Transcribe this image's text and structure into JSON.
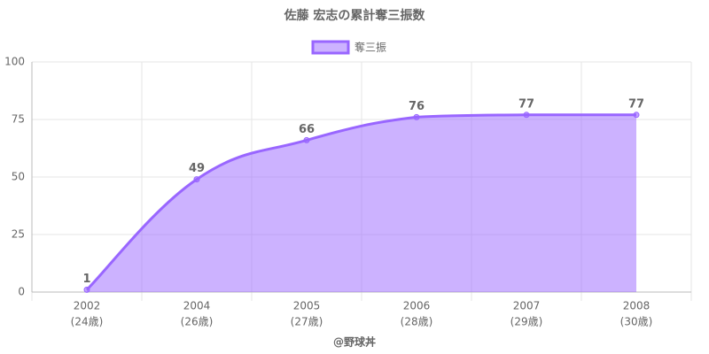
{
  "chart_data": {
    "type": "area",
    "title": "佐藤 宏志の累計奪三振数",
    "categories": [
      "2002",
      "2004",
      "2005",
      "2006",
      "2007",
      "2008"
    ],
    "category_sublabels": [
      "(24歳)",
      "(26歳)",
      "(27歳)",
      "(28歳)",
      "(29歳)",
      "(30歳)"
    ],
    "series": [
      {
        "name": "奪三振",
        "color": "#9966ff",
        "values": [
          1,
          49,
          66,
          76,
          77,
          77
        ]
      }
    ],
    "ylim": [
      0,
      100
    ],
    "yticks": [
      0,
      25,
      50,
      75,
      100
    ],
    "grid": true,
    "legend": "top",
    "footer": "@野球丼"
  }
}
